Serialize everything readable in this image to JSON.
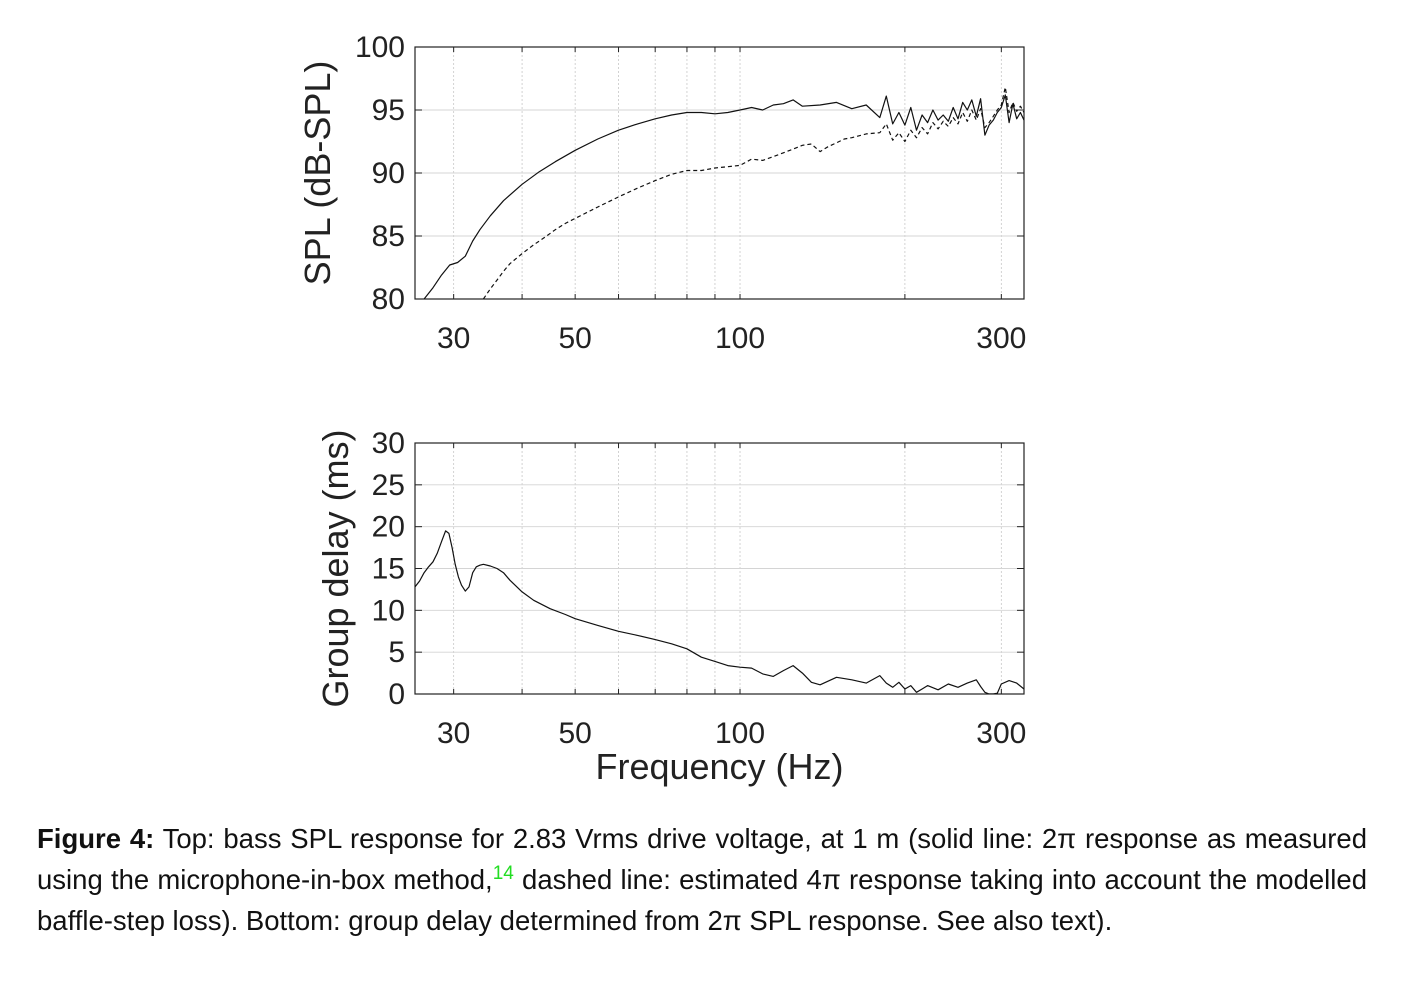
{
  "chart_data": [
    {
      "type": "line",
      "title": "",
      "xlabel": "",
      "ylabel": "SPL (dB-SPL)",
      "xscale": "log",
      "xlim": [
        25.5,
        330
      ],
      "ylim": [
        80,
        100
      ],
      "xticks": [
        30,
        50,
        100,
        300
      ],
      "xtick_labels": [
        "30",
        "50",
        "100",
        "300"
      ],
      "yticks": [
        80,
        85,
        90,
        95,
        100
      ],
      "ytick_labels": [
        "80",
        "85",
        "90",
        "95",
        "100"
      ],
      "grid": true,
      "series": [
        {
          "style": "solid",
          "x": [
            26.5,
            27.5,
            28.5,
            29.5,
            30.5,
            31.5,
            32.5,
            33.5,
            35,
            37,
            40,
            43,
            46,
            50,
            55,
            60,
            65,
            70,
            75,
            80,
            85,
            90,
            95,
            100,
            105,
            110,
            115,
            120,
            125,
            130,
            140,
            150,
            160,
            170,
            180,
            185,
            190,
            195,
            200,
            205,
            210,
            215,
            220,
            225,
            230,
            235,
            240,
            245,
            250,
            255,
            260,
            265,
            270,
            275,
            280,
            285,
            290,
            295,
            300,
            305,
            310,
            315,
            320,
            325,
            330
          ],
          "values": [
            80.0,
            80.9,
            81.9,
            82.7,
            82.9,
            83.4,
            84.6,
            85.5,
            86.6,
            87.8,
            89.1,
            90.1,
            90.9,
            91.8,
            92.7,
            93.4,
            93.9,
            94.3,
            94.6,
            94.8,
            94.8,
            94.7,
            94.8,
            95.0,
            95.2,
            95.0,
            95.4,
            95.5,
            95.8,
            95.3,
            95.4,
            95.6,
            95.1,
            95.4,
            94.4,
            96.1,
            93.9,
            94.8,
            93.8,
            95.2,
            93.4,
            94.6,
            94.0,
            95.0,
            94.2,
            94.6,
            94.1,
            95.2,
            94.3,
            95.6,
            95.0,
            95.8,
            94.5,
            95.9,
            93.0,
            93.8,
            94.2,
            94.8,
            95.2,
            96.2,
            94.0,
            95.5,
            94.3,
            94.8,
            94.2
          ]
        },
        {
          "style": "dashed",
          "x": [
            34,
            35,
            36,
            37,
            38,
            40,
            42,
            44,
            46,
            48,
            50,
            55,
            60,
            65,
            70,
            75,
            80,
            85,
            90,
            95,
            100,
            105,
            110,
            115,
            120,
            125,
            130,
            135,
            140,
            145,
            150,
            155,
            160,
            170,
            180,
            185,
            190,
            195,
            200,
            205,
            210,
            215,
            220,
            225,
            230,
            235,
            240,
            245,
            250,
            255,
            260,
            265,
            270,
            275,
            280,
            285,
            290,
            295,
            300,
            305,
            310,
            315,
            320,
            325,
            330
          ],
          "values": [
            80.0,
            80.8,
            81.5,
            82.2,
            82.8,
            83.6,
            84.3,
            84.9,
            85.5,
            86.0,
            86.4,
            87.3,
            88.1,
            88.8,
            89.4,
            89.9,
            90.2,
            90.2,
            90.4,
            90.5,
            90.6,
            91.1,
            91.0,
            91.3,
            91.6,
            91.9,
            92.2,
            92.3,
            91.7,
            92.1,
            92.4,
            92.7,
            92.8,
            93.1,
            93.2,
            93.9,
            92.6,
            93.2,
            92.5,
            93.4,
            92.8,
            93.6,
            93.1,
            94.0,
            93.5,
            94.1,
            93.7,
            94.4,
            93.9,
            94.8,
            94.1,
            95.0,
            94.2,
            95.1,
            93.6,
            94.0,
            94.5,
            95.0,
            95.4,
            96.8,
            94.8,
            95.6,
            94.9,
            95.3,
            94.8
          ]
        }
      ]
    },
    {
      "type": "line",
      "title": "",
      "xlabel": "Frequency (Hz)",
      "ylabel": "Group delay (ms)",
      "xscale": "log",
      "xlim": [
        25.5,
        330
      ],
      "ylim": [
        0,
        30
      ],
      "xticks": [
        30,
        50,
        100,
        300
      ],
      "xtick_labels": [
        "30",
        "50",
        "100",
        "300"
      ],
      "yticks": [
        0,
        5,
        10,
        15,
        20,
        25,
        30
      ],
      "ytick_labels": [
        "0",
        "5",
        "10",
        "15",
        "20",
        "25",
        "30"
      ],
      "grid": true,
      "series": [
        {
          "style": "solid",
          "x": [
            25.5,
            26.0,
            26.5,
            27.0,
            27.5,
            28.0,
            28.5,
            29.0,
            29.4,
            29.8,
            30.2,
            30.6,
            31.0,
            31.5,
            32.0,
            32.5,
            33.0,
            33.5,
            34.0,
            35.0,
            36.0,
            37.0,
            38.0,
            40.0,
            42.0,
            45.0,
            48.0,
            50.0,
            55.0,
            60.0,
            65.0,
            70.0,
            75.0,
            80.0,
            85.0,
            90.0,
            95.0,
            100.0,
            105.0,
            110.0,
            115.0,
            120.0,
            125.0,
            130.0,
            135.0,
            140.0,
            150.0,
            160.0,
            170.0,
            180.0,
            185.0,
            190.0,
            195.0,
            200.0,
            205.0,
            210.0,
            215.0,
            220.0,
            230.0,
            240.0,
            250.0,
            260.0,
            270.0,
            275.0,
            280.0,
            285.0,
            290.0,
            295.0,
            300.0,
            310.0,
            320.0,
            330.0
          ],
          "values": [
            12.8,
            13.5,
            14.5,
            15.2,
            15.8,
            16.8,
            18.2,
            19.5,
            19.2,
            17.5,
            15.5,
            14.0,
            13.0,
            12.3,
            12.8,
            14.5,
            15.2,
            15.4,
            15.5,
            15.3,
            15.0,
            14.5,
            13.6,
            12.2,
            11.2,
            10.2,
            9.5,
            9.0,
            8.2,
            7.5,
            7.0,
            6.5,
            6.0,
            5.4,
            4.4,
            3.9,
            3.4,
            3.2,
            3.1,
            2.4,
            2.1,
            2.8,
            3.4,
            2.5,
            1.4,
            1.1,
            2.0,
            1.7,
            1.3,
            2.2,
            1.3,
            0.8,
            1.4,
            0.6,
            1.0,
            0.2,
            0.6,
            1.0,
            0.5,
            1.2,
            0.8,
            1.3,
            1.7,
            0.9,
            0.2,
            0.0,
            0.0,
            0.1,
            1.2,
            1.6,
            1.3,
            0.6
          ]
        }
      ]
    }
  ],
  "caption": {
    "label": "Figure 4:",
    "text_1": "Top: bass SPL response for 2.83 Vrms drive voltage, at 1 m (solid line: 2π response as measured using the microphone-in-box method,",
    "ref": "14",
    "text_2": "dashed line: estimated 4π response taking into account the modelled baffle-step loss). Bottom: group delay determined from 2π SPL response. See also text)."
  }
}
